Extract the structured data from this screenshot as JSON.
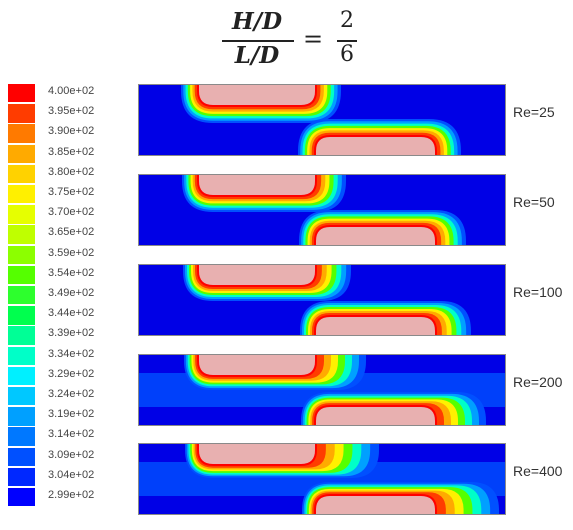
{
  "equation": {
    "numerator_left": "H/D",
    "denominator_left": "L/D",
    "equals": "=",
    "numerator_right": "2",
    "denominator_right": "6"
  },
  "colorbar": {
    "ticks": [
      "4.00e+02",
      "3.95e+02",
      "3.90e+02",
      "3.85e+02",
      "3.80e+02",
      "3.75e+02",
      "3.70e+02",
      "3.65e+02",
      "3.59e+02",
      "3.54e+02",
      "3.49e+02",
      "3.44e+02",
      "3.39e+02",
      "3.34e+02",
      "3.29e+02",
      "3.24e+02",
      "3.19e+02",
      "3.14e+02",
      "3.09e+02",
      "3.04e+02",
      "2.99e+02"
    ],
    "colors": [
      "#ff0000",
      "#ff3c00",
      "#ff7a00",
      "#ffaa00",
      "#ffd200",
      "#fff000",
      "#e6ff00",
      "#bfff00",
      "#8cff00",
      "#55ff00",
      "#2dff2d",
      "#00ff4e",
      "#00ff96",
      "#00ffc8",
      "#00f0ff",
      "#00c8ff",
      "#00a0ff",
      "#0078ff",
      "#0050ff",
      "#0028ff",
      "#0000ff"
    ]
  },
  "panels": [
    {
      "label": "Re=25"
    },
    {
      "label": "Re=50"
    },
    {
      "label": "Re=100"
    },
    {
      "label": "Re=200"
    },
    {
      "label": "Re=400"
    }
  ]
}
